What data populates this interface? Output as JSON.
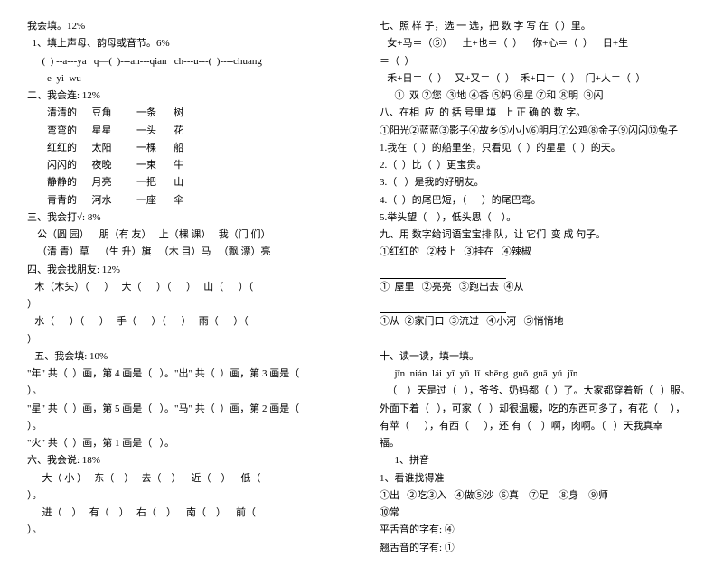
{
  "left": {
    "l1": "我会填。12%",
    "l2": "  1、填上声母、韵母或音节。6%",
    "l3": "      (  ) --a---ya   q—(  )---an---qian   ch---u---(  )----chuang",
    "l4": "        e  yi  wu",
    "l5": "二、我会连: 12%",
    "c1a": "清清的",
    "c1b": "豆角",
    "c1c": "一条",
    "c1d": "树",
    "c2a": "弯弯的",
    "c2b": "星星",
    "c2c": "一头",
    "c2d": "花",
    "c3a": "红红的",
    "c3b": "太阳",
    "c3c": "一棵",
    "c3d": "船",
    "c4a": "闪闪的",
    "c4b": "夜晚",
    "c4c": "一束",
    "c4d": "牛",
    "c5a": "静静的",
    "c5b": "月亮",
    "c5c": "一把",
    "c5d": "山",
    "c6a": "青青的",
    "c6b": "河水",
    "c6c": "一座",
    "c6d": "伞",
    "l6": "三、我会打√: 8%",
    "l7": "    公（圆 园）    朋（有 友）   上（棵 课）   我（门 们）",
    "l8": "    （清 青）草    （生 升）旗   （木 目）马   （飘 漂）亮",
    "l9": "四、我会找朋友: 12%",
    "l10": "   木（木头）（      ）   大（      ）（      ）   山（      ）（",
    "l10b": "）",
    "l11": "   水（      ）（      ）   手（      ）（      ）   雨（      ）（",
    "l11b": "）",
    "l12": "   五、我会填: 10%",
    "l13": "\"年\" 共（  ）画，第 4 画是（   ）。\"出\" 共（  ）画，第 3 画是（",
    "l13b": "）。",
    "l14": "\"星\" 共（  ）画，第 5 画是（   ）。\"马\" 共（  ）画，第 2 画是（",
    "l14b": "）。",
    "l15": "\"火\" 共（  ）画，第 1 画是（   ）。",
    "l16": "六、我会说: 18%",
    "l17": "      大（ 小 ）   东（    ）   去（    ）    近（    ）    低（",
    "l17b": "）。",
    "l18": "      进（    ）   有（    ）   右（    ）    南（    ）    前（",
    "l18b": "）。"
  },
  "right": {
    "r1": "七、照 样 子，选 一 选，把 数 字 写 在（ ）里。",
    "r2": "   女+马＝（⑤）    土+也＝（  ）    你+心＝（  ）    日+生",
    "r2b": "＝（  ）",
    "r3": "   禾+日＝（  ）   又+又＝（  ）  禾+口＝（  ）  门+人＝（  ）",
    "r4": "      ①  双 ②您  ③地 ④香 ⑤妈 ⑥星 ⑦和 ⑧明  ⑨闪",
    "r5": "八、在相  应  的 括 号里 填   上 正 确 的 数 字。",
    "r6": "①阳光②蓝蓝③影子④故乡⑤小小⑥明月⑦公鸡⑧金子⑨闪闪⑩兔子",
    "r7": "1.我在（  ）的船里坐，只看见（  ）的星星（  ）的天。",
    "r8": "2.（  ）比（  ）更宝贵。",
    "r9": "3.（   ）是我的好朋友。",
    "r10": "4.（  ）的尾巴短，（      ）的尾巴弯。",
    "r11": "5.举头望（    ），低头思（    ）。",
    "r12": "九、用 数字给词语宝宝排 队，让 它们  变 成 句子。",
    "r13": "①红红的   ②枝上   ③挂在   ④辣椒",
    "r14": "①  屋里   ②亮亮   ③跑出去  ④从",
    "r15": "①从  ②家门口  ③流过   ④小河   ⑤悄悄地",
    "r16": "十、读一读，填一填。",
    "r17": "      jīn  nián  lái  yī  yǔ  lǐ  shēng  guǒ  guā  yǔ  jīn",
    "r18": "   （    ）天是过（   ），爷爷、奶妈都（  ）了。大家都穿着新（   ）服。",
    "r19": "外面下着（   ），可家（   ）却很温暖，吃的东西可多了，有花（     ），",
    "r20": "有苹（      ），有西（      ），还 有（    ）啊，肉啊。（   ）天我真幸",
    "r21": "福。",
    "r22": "      1、拼音",
    "r23": "1、看谁找得准",
    "r24": "①出   ②吃③入   ④做⑤沙  ⑥真    ⑦足    ⑧身    ⑨师",
    "r25": "⑩常",
    "r26": "平舌音的字有: ④",
    "r27": "翘舌音的字有: ①"
  }
}
